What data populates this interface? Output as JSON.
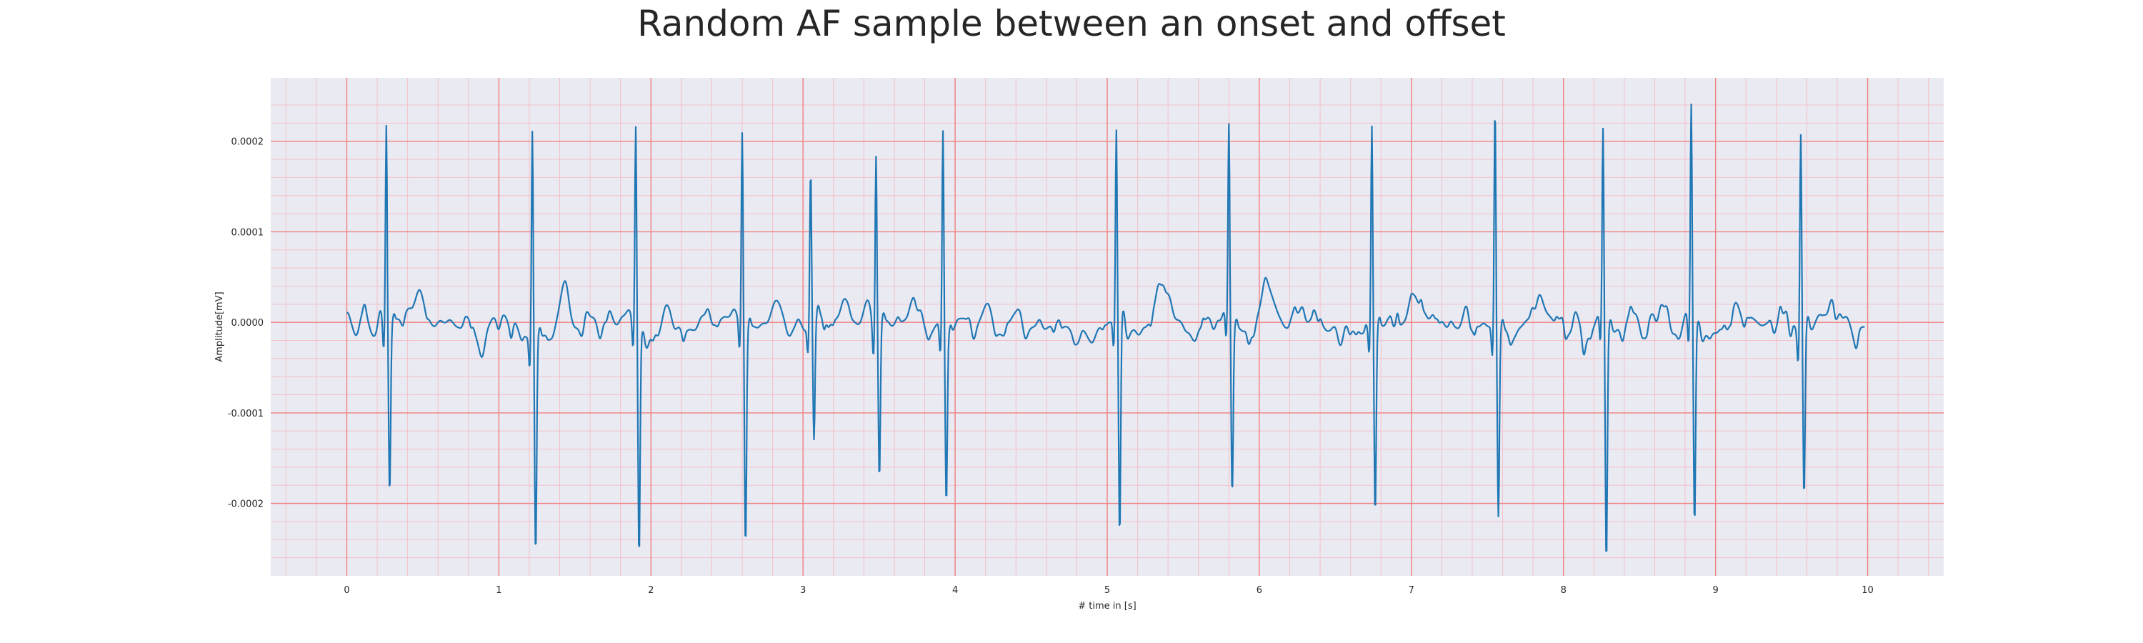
{
  "chart_data": {
    "type": "line",
    "title": "Random AF sample between an onset and offset",
    "xlabel": "# time in [s]",
    "ylabel": "Amplitude[mV]",
    "xlim": [
      -0.5,
      10.5
    ],
    "ylim": [
      -0.00028,
      0.00027
    ],
    "x_ticks": [
      0,
      1,
      2,
      3,
      4,
      5,
      6,
      7,
      8,
      9,
      10
    ],
    "x_tick_labels": [
      "0",
      "1",
      "2",
      "3",
      "4",
      "5",
      "6",
      "7",
      "8",
      "9",
      "10"
    ],
    "y_ticks": [
      -0.0002,
      -0.0001,
      0.0,
      0.0001,
      0.0002
    ],
    "y_tick_labels": [
      "-0.0002",
      "-0.0001",
      "0.0000",
      "0.0001",
      "0.0002"
    ],
    "grid": true,
    "minor_grid": true,
    "colors": {
      "line": "#1f77b4",
      "background": "#eaeaf2",
      "major_grid": "#f08080",
      "minor_grid": "#f4c0c8"
    },
    "beats": [
      {
        "t": 0.26,
        "peak": 0.00023,
        "trough": -0.00018
      },
      {
        "t": 1.22,
        "peak": 0.00024,
        "trough": -0.00024
      },
      {
        "t": 1.9,
        "peak": 0.00022,
        "trough": -0.00025
      },
      {
        "t": 2.6,
        "peak": 0.000215,
        "trough": -0.00024
      },
      {
        "t": 3.05,
        "peak": 0.000165,
        "trough": -0.000135
      },
      {
        "t": 3.48,
        "peak": 0.000195,
        "trough": -0.00017
      },
      {
        "t": 3.92,
        "peak": 0.000225,
        "trough": -0.000185
      },
      {
        "t": 5.06,
        "peak": 0.00021,
        "trough": -0.00024
      },
      {
        "t": 5.8,
        "peak": 0.000215,
        "trough": -0.000185
      },
      {
        "t": 6.74,
        "peak": 0.000222,
        "trough": -0.000205
      },
      {
        "t": 7.55,
        "peak": 0.000245,
        "trough": -0.000205
      },
      {
        "t": 8.26,
        "peak": 0.000217,
        "trough": -0.000255
      },
      {
        "t": 8.84,
        "peak": 0.00024,
        "trough": -0.00022
      },
      {
        "t": 9.56,
        "peak": 0.00022,
        "trough": -0.00019
      }
    ],
    "t_start": 0.0,
    "t_end": 9.98
  }
}
